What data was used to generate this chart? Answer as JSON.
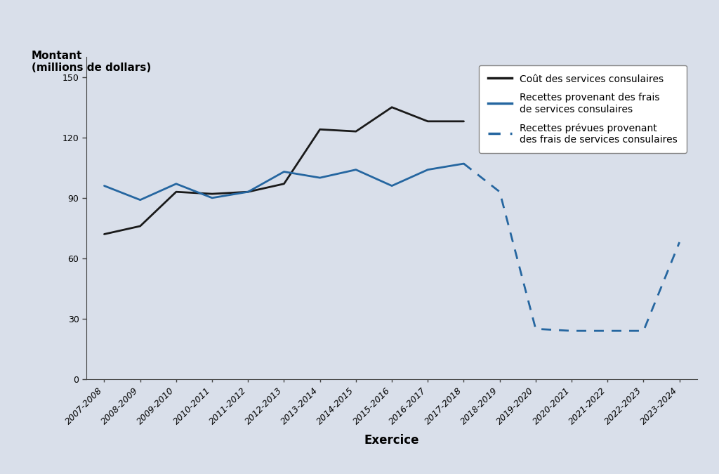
{
  "all_years": [
    "2007-2008",
    "2008-2009",
    "2009-2010",
    "2010-2011",
    "2011-2012",
    "2012-2013",
    "2013-2014",
    "2014-2015",
    "2015-2016",
    "2016-2017",
    "2017-2018",
    "2018-2019",
    "2019-2020",
    "2020-2021",
    "2021-2022",
    "2022-2023",
    "2023-2024"
  ],
  "cost_years_idx": [
    0,
    1,
    2,
    3,
    4,
    5,
    6,
    7,
    8,
    9,
    10
  ],
  "cost": [
    72,
    76,
    93,
    92,
    93,
    97,
    124,
    123,
    135,
    128,
    128
  ],
  "revenue_years_idx": [
    0,
    1,
    2,
    3,
    4,
    5,
    6,
    7,
    8,
    9,
    10
  ],
  "revenue": [
    96,
    89,
    97,
    90,
    93,
    103,
    100,
    104,
    96,
    104,
    107
  ],
  "projected_years_idx": [
    10,
    11,
    12,
    13,
    14,
    15,
    16
  ],
  "projected_revenue": [
    107,
    93,
    25,
    24,
    24,
    24,
    68
  ],
  "background_color": "#d9dfea",
  "cost_color": "#1a1a1a",
  "revenue_color": "#2566a0",
  "projected_color": "#2566a0",
  "ylabel_line1": "Montant",
  "ylabel_line2": "(millions de dollars)",
  "xlabel": "Exercice",
  "ylim": [
    0,
    160
  ],
  "yticks": [
    0,
    30,
    60,
    90,
    120,
    150
  ],
  "legend_cost": "Coût des services consulaires",
  "legend_revenue": "Recettes provenant des frais\nde services consulaires",
  "legend_projected": "Recettes prévues provenant\ndes frais de services consulaires",
  "tick_fontsize": 9,
  "label_fontsize": 11,
  "ylabel_fontsize": 11
}
